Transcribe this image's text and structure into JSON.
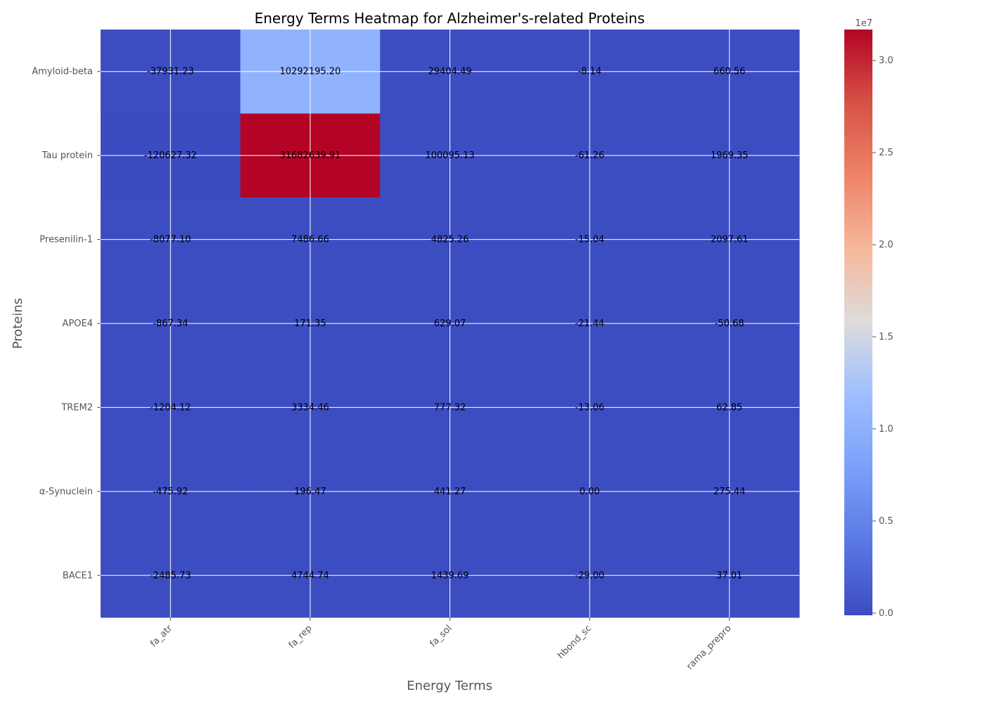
{
  "chart_data": {
    "type": "heatmap",
    "title": "Energy Terms Heatmap for Alzheimer's-related Proteins",
    "xlabel": "Energy Terms",
    "ylabel": "Proteins",
    "x_categories": [
      "fa_atr",
      "fa_rep",
      "fa_sol",
      "hbond_sc",
      "rama_prepro"
    ],
    "y_categories": [
      "Amyloid-beta",
      "Tau protein",
      "Presenilin-1",
      "APOE4",
      "TREM2",
      "α-Synuclein",
      "BACE1"
    ],
    "values": [
      [
        -37931.23,
        10292195.2,
        29404.49,
        -8.14,
        660.56
      ],
      [
        -120627.32,
        31682639.91,
        100095.13,
        -61.26,
        1969.35
      ],
      [
        -8077.1,
        7486.66,
        4825.26,
        -15.04,
        2097.61
      ],
      [
        -867.34,
        171.35,
        629.07,
        -21.44,
        -50.68
      ],
      [
        -1204.12,
        3334.46,
        777.32,
        -13.06,
        62.85
      ],
      [
        -475.92,
        196.47,
        441.27,
        0.0,
        275.44
      ],
      [
        -2485.73,
        4744.74,
        1439.69,
        -29.0,
        37.01
      ]
    ],
    "cell_labels": [
      [
        "-37931.23",
        "10292195.20",
        "29404.49",
        "-8.14",
        "660.56"
      ],
      [
        "-120627.32",
        "31682639.91",
        "100095.13",
        "-61.26",
        "1969.35"
      ],
      [
        "-8077.10",
        "7486.66",
        "4825.26",
        "-15.04",
        "2097.61"
      ],
      [
        "-867.34",
        "171.35",
        "629.07",
        "-21.44",
        "-50.68"
      ],
      [
        "-1204.12",
        "3334.46",
        "777.32",
        "-13.06",
        "62.85"
      ],
      [
        "-475.92",
        "196.47",
        "441.27",
        "0.00",
        "275.44"
      ],
      [
        "-2485.73",
        "4744.74",
        "1439.69",
        "-29.00",
        "37.01"
      ]
    ],
    "colormap": "coolwarm",
    "colorbar": {
      "vmin": -120627.32,
      "vmax": 31682639.91,
      "ticks": [
        0.0,
        0.5,
        1.0,
        1.5,
        2.0,
        2.5,
        3.0
      ],
      "tick_labels": [
        "0.0",
        "0.5",
        "1.0",
        "1.5",
        "2.0",
        "2.5",
        "3.0"
      ],
      "scale_label": "1e7"
    },
    "grid": true
  },
  "colors": {
    "grid": "#ffffff",
    "text": "#000000",
    "axis_text": "#555555"
  }
}
